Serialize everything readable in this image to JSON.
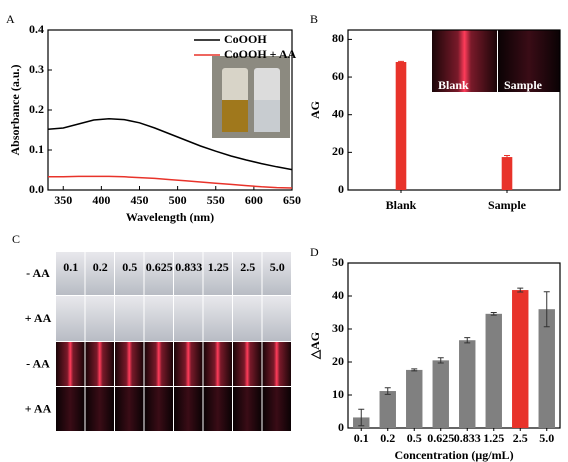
{
  "chart_data": [
    {
      "type": "line",
      "panel_label": "A",
      "xlabel": "Wavelength (nm)",
      "ylabel": "Absorbance (a.u.)",
      "x": [
        330,
        350,
        370,
        390,
        410,
        430,
        450,
        470,
        490,
        510,
        530,
        550,
        570,
        590,
        610,
        630,
        650
      ],
      "series": [
        {
          "name": "CoOOH",
          "color": "#000000",
          "values": [
            0.152,
            0.155,
            0.165,
            0.175,
            0.178,
            0.176,
            0.168,
            0.155,
            0.14,
            0.125,
            0.11,
            0.097,
            0.085,
            0.075,
            0.066,
            0.058,
            0.051
          ]
        },
        {
          "name": "CoOOH + AA",
          "color": "#e8332a",
          "values": [
            0.033,
            0.033,
            0.034,
            0.034,
            0.034,
            0.033,
            0.031,
            0.029,
            0.026,
            0.023,
            0.02,
            0.017,
            0.014,
            0.011,
            0.008,
            0.006,
            0.005
          ]
        }
      ],
      "xlim": [
        330,
        650
      ],
      "xticks": [
        350,
        400,
        450,
        500,
        550,
        600,
        650
      ],
      "ylim": [
        0,
        0.4
      ],
      "yticks": [
        {
          "value": 0,
          "label": "0.0"
        },
        0.1,
        0.2,
        0.3,
        0.4
      ],
      "legend": "upper right"
    },
    {
      "type": "bar",
      "panel_label": "B",
      "ylabel": "AG",
      "categories": [
        "Blank",
        "Sample"
      ],
      "values": [
        68,
        17.5
      ],
      "errors": [
        0.3,
        0.8
      ],
      "color": "#e8332a",
      "ylim": [
        0,
        85
      ],
      "yticks": [
        0,
        20,
        40,
        60,
        80
      ],
      "inset_labels": [
        "Blank",
        "Sample"
      ]
    },
    {
      "type": "bar",
      "panel_label": "D",
      "xlabel": "Concentration (μg/mL)",
      "ylabel": "△AG",
      "categories": [
        "0.1",
        "0.2",
        "0.5",
        "0.625",
        "0.833",
        "1.25",
        "2.5",
        "5.0"
      ],
      "values": [
        3.2,
        11.2,
        17.6,
        20.5,
        26.6,
        34.6,
        41.8,
        36
      ],
      "errors": [
        2.5,
        1,
        0.3,
        0.8,
        0.8,
        0.4,
        0.6,
        5.3
      ],
      "colors": [
        "#808080",
        "#808080",
        "#808080",
        "#808080",
        "#808080",
        "#808080",
        "#e8332a",
        "#808080"
      ],
      "ylim": [
        0,
        50
      ],
      "yticks": [
        0,
        10,
        20,
        30,
        40,
        50
      ]
    }
  ],
  "panel_c": {
    "panel_label": "C",
    "concentrations": [
      "0.1",
      "0.2",
      "0.5",
      "0.625",
      "0.833",
      "1.25",
      "2.5",
      "5.0"
    ],
    "row_labels": [
      "- AA",
      "+ AA",
      "- AA",
      "+ AA"
    ]
  }
}
